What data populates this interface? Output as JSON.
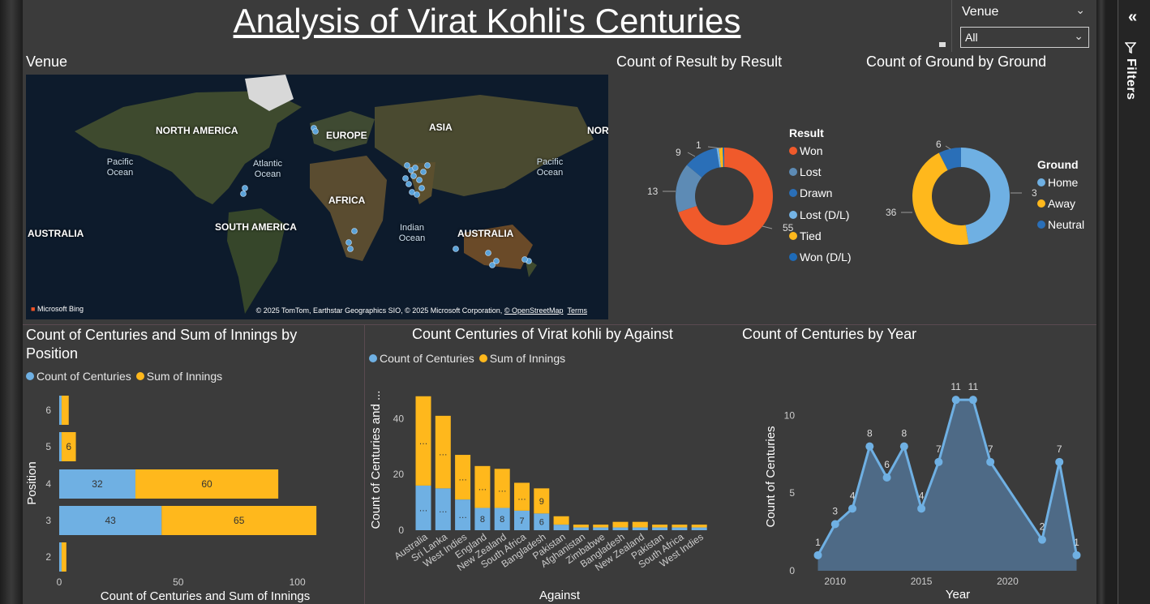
{
  "report": {
    "title": "Analysis of Virat Kohli's Centuries",
    "slicer": {
      "label": "Venue",
      "value": "All"
    },
    "filters_label": "Filters"
  },
  "map": {
    "title": "Venue",
    "continents": [
      "NORTH AMERICA",
      "EUROPE",
      "ASIA",
      "NOR",
      "AFRICA",
      "SOUTH AMERICA",
      "AUSTRALIA",
      "AUSTRALIA"
    ],
    "oceans": [
      "Pacific Ocean",
      "Atlantic Ocean",
      "Pacific Ocean",
      "Indian Ocean"
    ],
    "bing": "Microsoft Bing",
    "credits_text": "© 2025 TomTom, Earthstar Geographics SIO, © 2025 Microsoft Corporation,",
    "credits_osm": "© OpenStreetMap",
    "credits_terms": "Terms",
    "colors": {
      "dot": "#5ba3d9"
    }
  },
  "result_donut": {
    "title": "Count of Result by Result",
    "legend_title": "Result",
    "slices": [
      {
        "name": "Won",
        "value": 55,
        "color": "#f05a2b"
      },
      {
        "name": "Lost",
        "value": 13,
        "color": "#5d8bb5"
      },
      {
        "name": "Drawn",
        "value": 9,
        "color": "#2a6fb8"
      },
      {
        "name": "Lost (D/L)",
        "value": 0.6,
        "color": "#74b4e6"
      },
      {
        "name": "Tied",
        "value": 1,
        "color": "#ffb81c"
      },
      {
        "name": "Won (D/L)",
        "value": 0.4,
        "color": "#1e6bb8"
      }
    ],
    "labels": [
      "55",
      "13",
      "9",
      "1"
    ]
  },
  "ground_donut": {
    "title": "Count of Ground by Ground",
    "legend_title": "Ground",
    "slices": [
      {
        "name": "Home",
        "value": 38,
        "color": "#6fb0e3"
      },
      {
        "name": "Away",
        "value": 36,
        "color": "#ffb81c"
      },
      {
        "name": "Neutral",
        "value": 6,
        "color": "#2a6fb8"
      }
    ],
    "labels": [
      "38",
      "36",
      "6"
    ]
  },
  "chart_data": [
    {
      "type": "bar",
      "orientation": "horizontal",
      "stacked": true,
      "title": "Count of Centuries and Sum of Innings by Position",
      "xlabel": "Count of Centuries and Sum of Innings",
      "ylabel": "Position",
      "categories": [
        "6",
        "5",
        "4",
        "3",
        "2"
      ],
      "series": [
        {
          "name": "Count of Centuries",
          "values": [
            1,
            1,
            32,
            43,
            1
          ],
          "color": "#6fb0e3"
        },
        {
          "name": "Sum of Innings",
          "values": [
            3,
            6,
            60,
            65,
            2
          ],
          "color": "#ffb81c"
        }
      ],
      "xticks": [
        "0",
        "50",
        "100"
      ],
      "xlim": [
        0,
        110
      ],
      "data_labels": {
        "centuries": [
          "",
          "",
          "32",
          "43",
          ""
        ],
        "innings": [
          "",
          "6",
          "60",
          "65",
          ""
        ]
      }
    },
    {
      "type": "bar",
      "stacked": true,
      "title": "Count Centuries of Virat kohli by Against",
      "xlabel": "Against",
      "ylabel": "Count of Centuries and ...",
      "categories": [
        "Australia",
        "Sri Lanka",
        "West Indies",
        "England",
        "New Zealand",
        "South Africa",
        "Bangladesh",
        "Pakistan",
        "Afghanistan",
        "Zimbabwe",
        "Bangladesh",
        "New Zealand",
        "Pakistan",
        "South Africa",
        "West Indies"
      ],
      "series": [
        {
          "name": "Count of Centuries",
          "values": [
            16,
            15,
            11,
            8,
            8,
            7,
            6,
            2,
            1,
            1,
            1,
            1,
            1,
            1,
            1
          ],
          "color": "#6fb0e3"
        },
        {
          "name": "Sum of Innings",
          "values": [
            32,
            26,
            16,
            15,
            14,
            10,
            9,
            3,
            1,
            1,
            2,
            2,
            1,
            1,
            1
          ],
          "color": "#ffb81c"
        }
      ],
      "yticks": [
        "0",
        "20",
        "40"
      ],
      "ylim": [
        0,
        52
      ],
      "data_labels": {
        "centuries": [
          "…",
          "…",
          "…",
          "8",
          "8",
          "7",
          "6",
          "",
          "",
          "",
          "",
          "",
          "",
          "",
          ""
        ],
        "innings": [
          "…",
          "…",
          "…",
          "…",
          "…",
          "…",
          "9",
          "",
          "",
          "",
          "",
          "",
          "",
          "",
          ""
        ]
      }
    },
    {
      "type": "area",
      "title": "Count of Centuries by Year",
      "xlabel": "Year",
      "ylabel": "Count of Centuries",
      "x": [
        2009,
        2010,
        2011,
        2012,
        2013,
        2014,
        2015,
        2016,
        2017,
        2018,
        2019,
        2022,
        2023,
        2024
      ],
      "y": [
        1,
        3,
        4,
        8,
        6,
        8,
        4,
        7,
        11,
        11,
        7,
        2,
        7,
        1
      ],
      "xticks": [
        "2010",
        "2015",
        "2020"
      ],
      "yticks": [
        "0",
        "5",
        "10"
      ],
      "xlim": [
        2008.6,
        2024.4
      ],
      "ylim": [
        0,
        12
      ],
      "color": "#6fb0e3"
    }
  ]
}
